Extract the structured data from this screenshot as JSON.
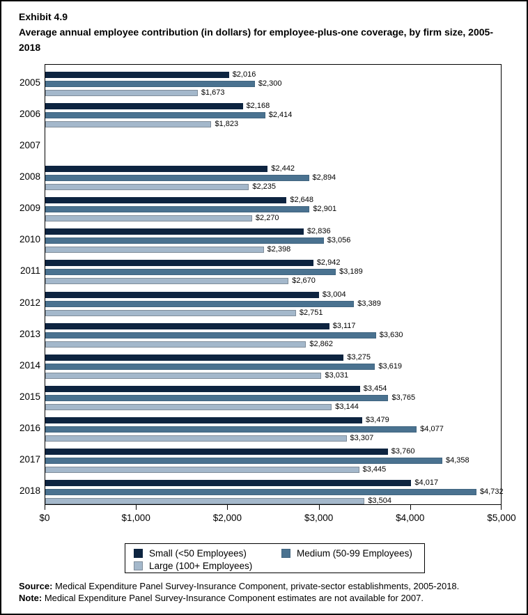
{
  "header": {
    "exhibit": "Exhibit 4.9",
    "title": "Average annual employee contribution (in dollars) for employee-plus-one coverage, by firm size, 2005-2018"
  },
  "chart_data": {
    "type": "bar",
    "orientation": "horizontal",
    "title": "Average annual employee contribution (in dollars) for employee-plus-one coverage, by firm size, 2005-2018",
    "categories": [
      "2005",
      "2006",
      "2007",
      "2008",
      "2009",
      "2010",
      "2011",
      "2012",
      "2013",
      "2014",
      "2015",
      "2016",
      "2017",
      "2018"
    ],
    "series": [
      {
        "name": "Small (<50 Employees)",
        "color": "#0d2440",
        "border_color": "#0d2440",
        "values": [
          2016,
          2168,
          null,
          2442,
          2648,
          2836,
          2942,
          3004,
          3117,
          3275,
          3454,
          3479,
          3760,
          4017
        ]
      },
      {
        "name": "Medium (50-99 Employees)",
        "color": "#4a7290",
        "border_color": "#40647f",
        "values": [
          2300,
          2414,
          null,
          2894,
          2901,
          3056,
          3189,
          3389,
          3630,
          3619,
          3765,
          4077,
          4358,
          4732
        ]
      },
      {
        "name": "Large (100+ Employees)",
        "color": "#a4b8cb",
        "border_color": "#7f8c99",
        "values": [
          1673,
          1823,
          null,
          2235,
          2270,
          2398,
          2670,
          2751,
          2862,
          3031,
          3144,
          3307,
          3445,
          3504
        ]
      }
    ],
    "xlim": [
      0,
      5000
    ],
    "x_tick_values": [
      0,
      1000,
      2000,
      3000,
      4000,
      5000
    ],
    "x_tick_labels": [
      "$0",
      "$1,000",
      "$2,000",
      "$3,000",
      "$4,000",
      "$5,000"
    ],
    "value_prefix": "$",
    "grid": false,
    "legend_position": "bottom",
    "data_labels": true,
    "missing_data_year": "2007"
  },
  "footer": {
    "source_label": "Source:",
    "source_text": " Medical Expenditure Panel Survey-Insurance Component, private-sector establishments, 2005-2018.",
    "note_label": "Note:",
    "note_text": " Medical Expenditure Panel Survey-Insurance Component estimates are not available for 2007."
  }
}
